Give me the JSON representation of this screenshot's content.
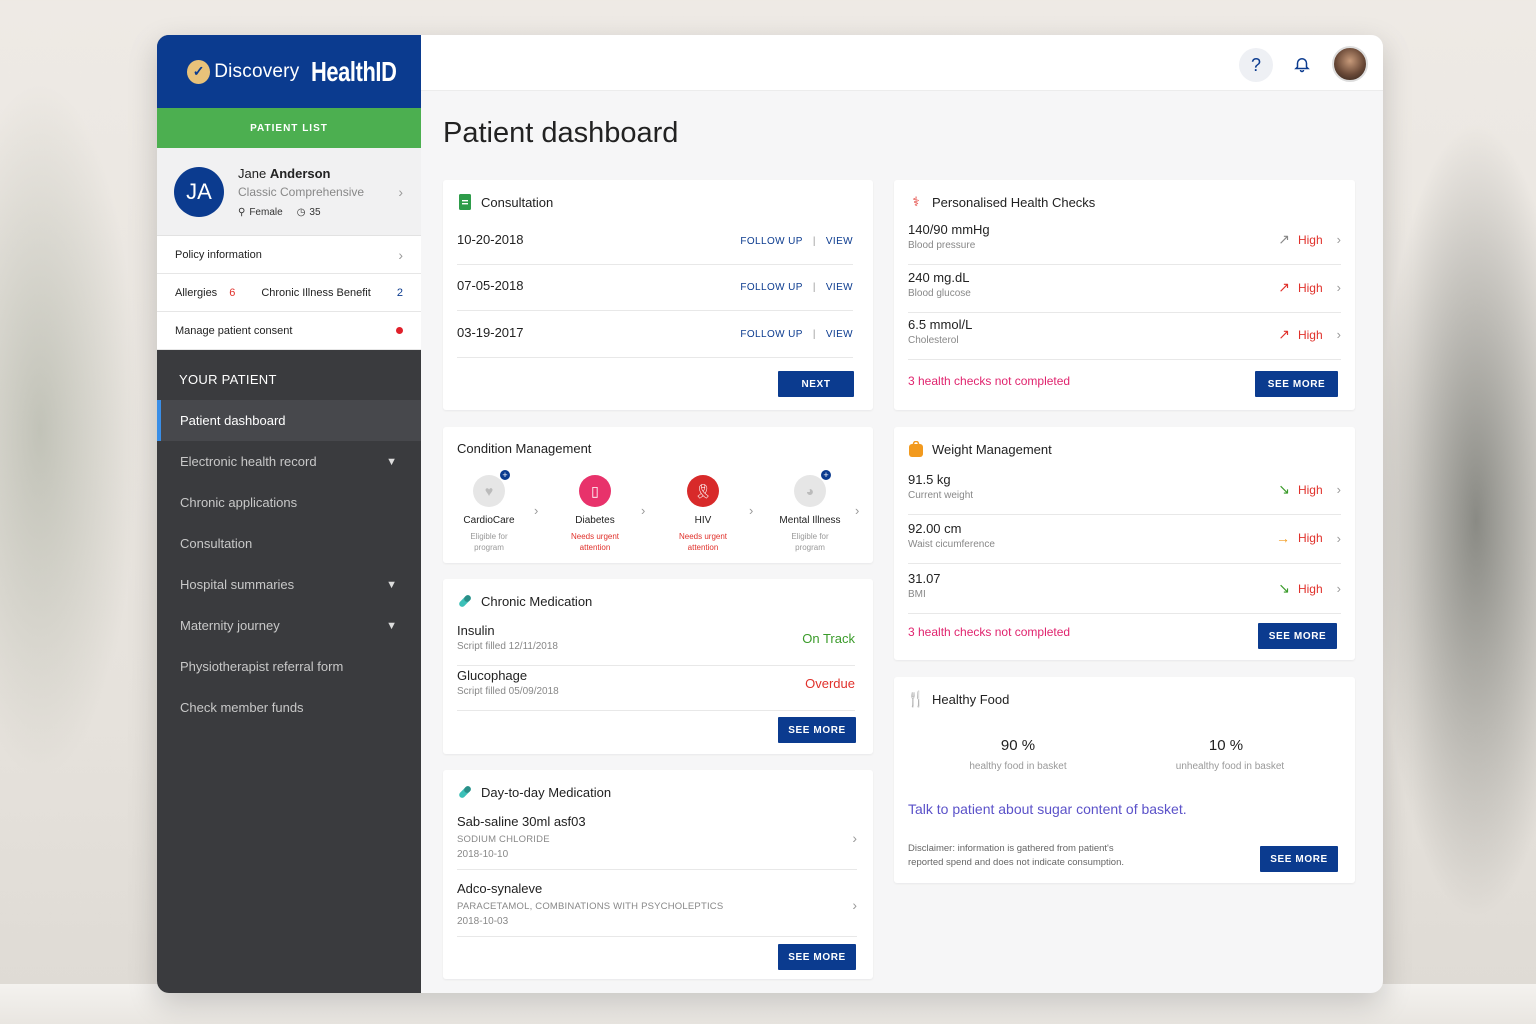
{
  "brand": {
    "name": "Discovery",
    "product": "HealthID"
  },
  "sidebar": {
    "patient_list_label": "PATIENT LIST",
    "patient": {
      "initials": "JA",
      "first_name": "Jane",
      "last_name": "Anderson",
      "plan": "Classic Comprehensive",
      "gender": "Female",
      "age": "35"
    },
    "rows": {
      "policy_label": "Policy information",
      "allergies_label": "Allergies",
      "allergies_count": "6",
      "chronic_label": "Chronic Illness Benefit",
      "chronic_count": "2",
      "consent_label": "Manage patient consent"
    },
    "nav_heading": "YOUR PATIENT",
    "nav": [
      {
        "label": "Patient dashboard"
      },
      {
        "label": "Electronic health record"
      },
      {
        "label": "Chronic applications"
      },
      {
        "label": "Consultation"
      },
      {
        "label": "Hospital summaries"
      },
      {
        "label": "Maternity journey"
      },
      {
        "label": "Physiotherapist referral form"
      },
      {
        "label": "Check member funds"
      }
    ]
  },
  "topbar": {
    "help_glyph": "?",
    "bell_glyph": "🔔"
  },
  "page_title": "Patient dashboard",
  "consultation": {
    "title": "Consultation",
    "rows": [
      {
        "date": "10-20-2018",
        "follow_up": "FOLLOW UP",
        "view": "VIEW"
      },
      {
        "date": "07-05-2018",
        "follow_up": "FOLLOW UP",
        "view": "VIEW"
      },
      {
        "date": "03-19-2017",
        "follow_up": "FOLLOW UP",
        "view": "VIEW"
      }
    ],
    "next_label": "NEXT"
  },
  "health_checks": {
    "title": "Personalised Health Checks",
    "rows": [
      {
        "value": "140/90 mmHg",
        "label": "Blood pressure",
        "status": "High"
      },
      {
        "value": "240 mg.dL",
        "label": "Blood glucose",
        "status": "High"
      },
      {
        "value": "6.5 mmol/L",
        "label": "Cholesterol",
        "status": "High"
      }
    ],
    "not_completed": "3 health checks not completed",
    "see_more": "SEE MORE"
  },
  "condition": {
    "title": "Condition Management",
    "items": [
      {
        "name": "CardioCare",
        "sub1": "Eligible for",
        "sub2": "program"
      },
      {
        "name": "Diabetes",
        "sub1": "Needs urgent",
        "sub2": "attention"
      },
      {
        "name": "HIV",
        "sub1": "Needs urgent",
        "sub2": "attention"
      },
      {
        "name": "Mental Illness",
        "sub1": "Eligible for",
        "sub2": "program"
      }
    ]
  },
  "weight": {
    "title": "Weight Management",
    "rows": [
      {
        "value": "91.5 kg",
        "label": "Current weight",
        "status": "High"
      },
      {
        "value": "92.00 cm",
        "label": "Waist cicumference",
        "status": "High"
      },
      {
        "value": "31.07",
        "label": "BMI",
        "status": "High"
      }
    ],
    "not_completed": "3 health checks not completed",
    "see_more": "SEE MORE"
  },
  "chronic_med": {
    "title": "Chronic Medication",
    "rows": [
      {
        "name": "Insulin",
        "sub": "Script filled 12/11/2018",
        "status": "On Track"
      },
      {
        "name": "Glucophage",
        "sub": "Script filled 05/09/2018",
        "status": "Overdue"
      }
    ],
    "see_more": "SEE MORE",
    "colors": {
      "on_track": "#3a9b2a",
      "overdue": "#e0312b"
    }
  },
  "food": {
    "title": "Healthy Food",
    "healthy_pct": "90 %",
    "healthy_label": "healthy food in basket",
    "unhealthy_pct": "10 %",
    "unhealthy_label": "unhealthy food in basket",
    "talk": "Talk to patient about sugar content of basket.",
    "disclaimer_line1": "Disclaimer: information is gathered from patient's",
    "disclaimer_line2": "reported spend and does not indicate consumption.",
    "see_more": "SEE MORE"
  },
  "day_med": {
    "title": "Day-to-day Medication",
    "rows": [
      {
        "name": "Sab-saline 30ml asf03",
        "sub": "SODIUM CHLORIDE",
        "date": "2018-10-10"
      },
      {
        "name": "Adco-synaleve",
        "sub": "PARACETAMOL, COMBINATIONS WITH PSYCHOLEPTICS",
        "date": "2018-10-03"
      }
    ],
    "see_more": "SEE MORE"
  },
  "colors": {
    "brand_blue": "#0b3b8f",
    "green": "#4caf50",
    "alert_red": "#e0312b",
    "accent_purple": "#5b52c9"
  }
}
